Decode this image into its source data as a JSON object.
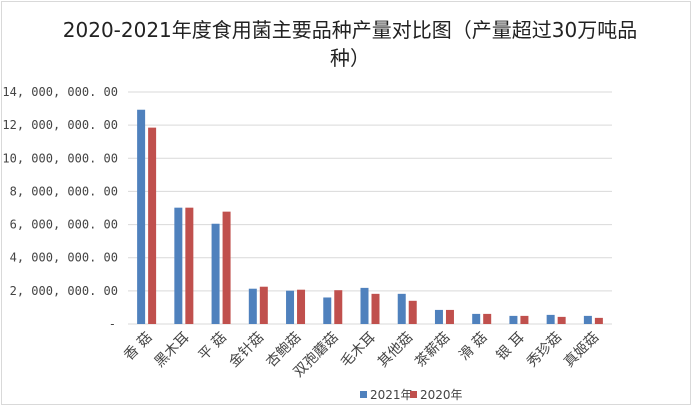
{
  "chart_data": {
    "type": "bar",
    "title": "2020-2021年度食用菌主要品种产量对比图（产量超过30万吨品种）",
    "categories": [
      "香 菇",
      "黑木耳",
      "平 菇",
      "金针菇",
      "杏鲍菇",
      "双孢蘑菇",
      "毛木耳",
      "其他菇",
      "茶薪菇",
      "滑 菇",
      "银 耳",
      "秀珍菇",
      "真姬菇"
    ],
    "series": [
      {
        "name": "2021年",
        "color": "#4f81bd",
        "values": [
          12930000,
          7020000,
          6050000,
          2130000,
          2010000,
          1600000,
          2180000,
          1820000,
          850000,
          610000,
          490000,
          550000,
          490000
        ]
      },
      {
        "name": "2020年",
        "color": "#c0504d",
        "values": [
          11850000,
          7020000,
          6780000,
          2250000,
          2070000,
          2040000,
          1820000,
          1400000,
          850000,
          610000,
          490000,
          430000,
          370000
        ]
      }
    ],
    "ylim": [
      0,
      14000000
    ],
    "yticks": [
      {
        "value": 0,
        "label": "-"
      },
      {
        "value": 2000000,
        "label": "2, 000, 000. 00"
      },
      {
        "value": 4000000,
        "label": "4, 000, 000. 00"
      },
      {
        "value": 6000000,
        "label": "6, 000, 000. 00"
      },
      {
        "value": 8000000,
        "label": "8, 000, 000. 00"
      },
      {
        "value": 10000000,
        "label": "10, 000, 000. 00"
      },
      {
        "value": 12000000,
        "label": "12, 000, 000. 00"
      },
      {
        "value": 14000000,
        "label": "14, 000, 000. 00"
      }
    ],
    "grid": true,
    "legend": "bottom",
    "xlabel": "",
    "ylabel": ""
  }
}
